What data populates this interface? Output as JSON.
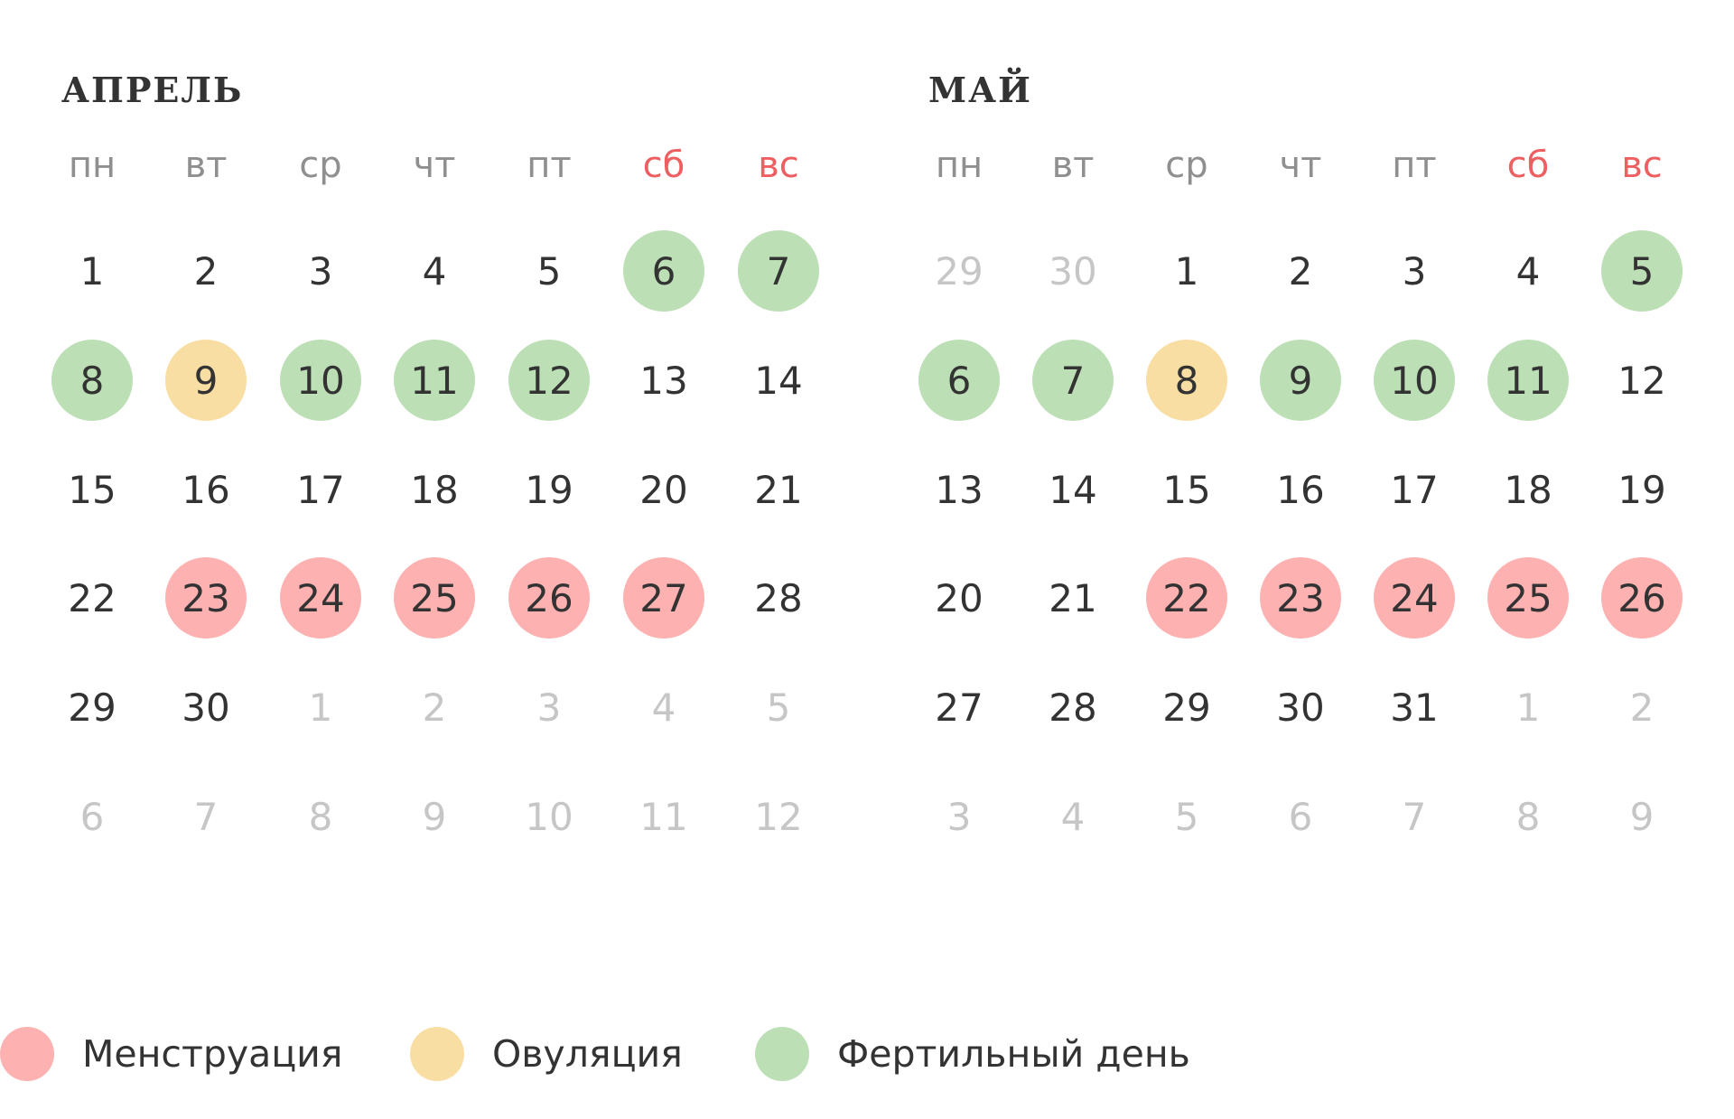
{
  "colors": {
    "menstruation": "#fdb1b1",
    "ovulation": "#f9dea4",
    "fertile": "#bcdfb5",
    "weekend_label": "#ee5f61",
    "weekday_label": "#8f8f8f",
    "day_text": "#333333",
    "other_month_text": "#c6c6c6"
  },
  "weekdays": [
    "пн",
    "вт",
    "ср",
    "чт",
    "пт",
    "сб",
    "вс"
  ],
  "months": [
    {
      "title": "АПРЕЛЬ",
      "weeks": [
        [
          {
            "d": "1"
          },
          {
            "d": "2"
          },
          {
            "d": "3"
          },
          {
            "d": "4"
          },
          {
            "d": "5"
          },
          {
            "d": "6",
            "s": "fert"
          },
          {
            "d": "7",
            "s": "fert"
          }
        ],
        [
          {
            "d": "8",
            "s": "fert"
          },
          {
            "d": "9",
            "s": "ovul"
          },
          {
            "d": "10",
            "s": "fert"
          },
          {
            "d": "11",
            "s": "fert"
          },
          {
            "d": "12",
            "s": "fert"
          },
          {
            "d": "13"
          },
          {
            "d": "14"
          }
        ],
        [
          {
            "d": "15"
          },
          {
            "d": "16"
          },
          {
            "d": "17"
          },
          {
            "d": "18"
          },
          {
            "d": "19"
          },
          {
            "d": "20"
          },
          {
            "d": "21"
          }
        ],
        [
          {
            "d": "22"
          },
          {
            "d": "23",
            "s": "mens"
          },
          {
            "d": "24",
            "s": "mens"
          },
          {
            "d": "25",
            "s": "mens"
          },
          {
            "d": "26",
            "s": "mens"
          },
          {
            "d": "27",
            "s": "mens"
          },
          {
            "d": "28"
          }
        ],
        [
          {
            "d": "29"
          },
          {
            "d": "30"
          },
          {
            "d": "1",
            "o": true
          },
          {
            "d": "2",
            "o": true
          },
          {
            "d": "3",
            "o": true
          },
          {
            "d": "4",
            "o": true
          },
          {
            "d": "5",
            "o": true
          }
        ],
        [
          {
            "d": "6",
            "o": true
          },
          {
            "d": "7",
            "o": true
          },
          {
            "d": "8",
            "o": true
          },
          {
            "d": "9",
            "o": true
          },
          {
            "d": "10",
            "o": true
          },
          {
            "d": "11",
            "o": true
          },
          {
            "d": "12",
            "o": true
          }
        ]
      ]
    },
    {
      "title": "МАЙ",
      "weeks": [
        [
          {
            "d": "29",
            "o": true
          },
          {
            "d": "30",
            "o": true
          },
          {
            "d": "1"
          },
          {
            "d": "2"
          },
          {
            "d": "3"
          },
          {
            "d": "4"
          },
          {
            "d": "5",
            "s": "fert"
          }
        ],
        [
          {
            "d": "6",
            "s": "fert"
          },
          {
            "d": "7",
            "s": "fert"
          },
          {
            "d": "8",
            "s": "ovul"
          },
          {
            "d": "9",
            "s": "fert"
          },
          {
            "d": "10",
            "s": "fert"
          },
          {
            "d": "11",
            "s": "fert"
          },
          {
            "d": "12"
          }
        ],
        [
          {
            "d": "13"
          },
          {
            "d": "14"
          },
          {
            "d": "15"
          },
          {
            "d": "16"
          },
          {
            "d": "17"
          },
          {
            "d": "18"
          },
          {
            "d": "19"
          }
        ],
        [
          {
            "d": "20"
          },
          {
            "d": "21"
          },
          {
            "d": "22",
            "s": "mens"
          },
          {
            "d": "23",
            "s": "mens"
          },
          {
            "d": "24",
            "s": "mens"
          },
          {
            "d": "25",
            "s": "mens"
          },
          {
            "d": "26",
            "s": "mens"
          }
        ],
        [
          {
            "d": "27"
          },
          {
            "d": "28"
          },
          {
            "d": "29"
          },
          {
            "d": "30"
          },
          {
            "d": "31"
          },
          {
            "d": "1",
            "o": true
          },
          {
            "d": "2",
            "o": true
          }
        ],
        [
          {
            "d": "3",
            "o": true
          },
          {
            "d": "4",
            "o": true
          },
          {
            "d": "5",
            "o": true
          },
          {
            "d": "6",
            "o": true
          },
          {
            "d": "7",
            "o": true
          },
          {
            "d": "8",
            "o": true
          },
          {
            "d": "9",
            "o": true
          }
        ]
      ]
    }
  ],
  "legend": [
    {
      "key": "menstruation",
      "label": "Менструация"
    },
    {
      "key": "ovulation",
      "label": "Овуляция"
    },
    {
      "key": "fertile",
      "label": "Фертильный день"
    }
  ]
}
